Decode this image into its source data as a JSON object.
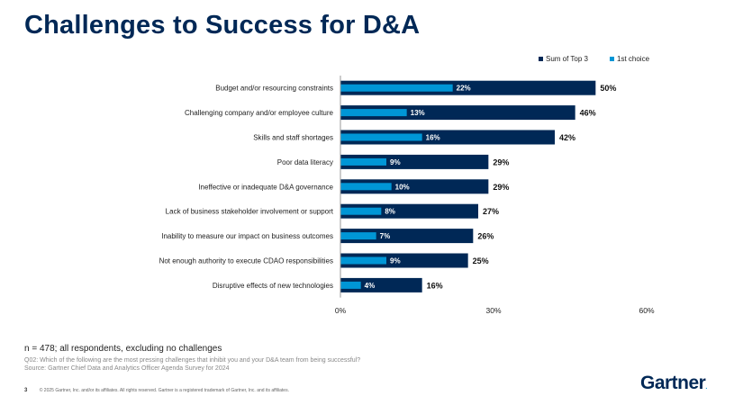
{
  "title": "Challenges to Success for D&A",
  "chart_data": {
    "type": "bar",
    "orientation": "horizontal",
    "categories": [
      "Budget and/or resourcing constraints",
      "Challenging company and/or employee culture",
      "Skills and staff shortages",
      "Poor data literacy",
      "Ineffective or inadequate D&A governance",
      "Lack of business stakeholder involvement or support",
      "Inability to measure our impact on business outcomes",
      "Not enough authority to execute CDAO responsibilities",
      "Disruptive effects of new technologies"
    ],
    "series": [
      {
        "name": "Sum of Top 3",
        "color": "#002856",
        "values": [
          50,
          46,
          42,
          29,
          29,
          27,
          26,
          25,
          16
        ]
      },
      {
        "name": "1st choice",
        "color": "#0096d6",
        "values": [
          22,
          13,
          16,
          9,
          10,
          8,
          7,
          9,
          4
        ]
      }
    ],
    "xlim": [
      0,
      60
    ],
    "xticks": [
      "0%",
      "30%",
      "60%"
    ],
    "grid": false,
    "legend": "top-right",
    "value_suffix": "%"
  },
  "notes": {
    "n": "n = 478; all respondents, excluding no challenges",
    "question": "Q02: Which of the following are the most pressing challenges that inhibit you and your D&A team from being successful?",
    "source": "Source: Gartner Chief Data and Analytics Officer Agenda Survey for 2024"
  },
  "footer": {
    "page": "3",
    "copyright": "© 2025 Gartner, Inc. and/or its affiliates. All rights reserved. Gartner is a registered trademark of Gartner, Inc. and its affiliates."
  },
  "logo": "Gartner"
}
